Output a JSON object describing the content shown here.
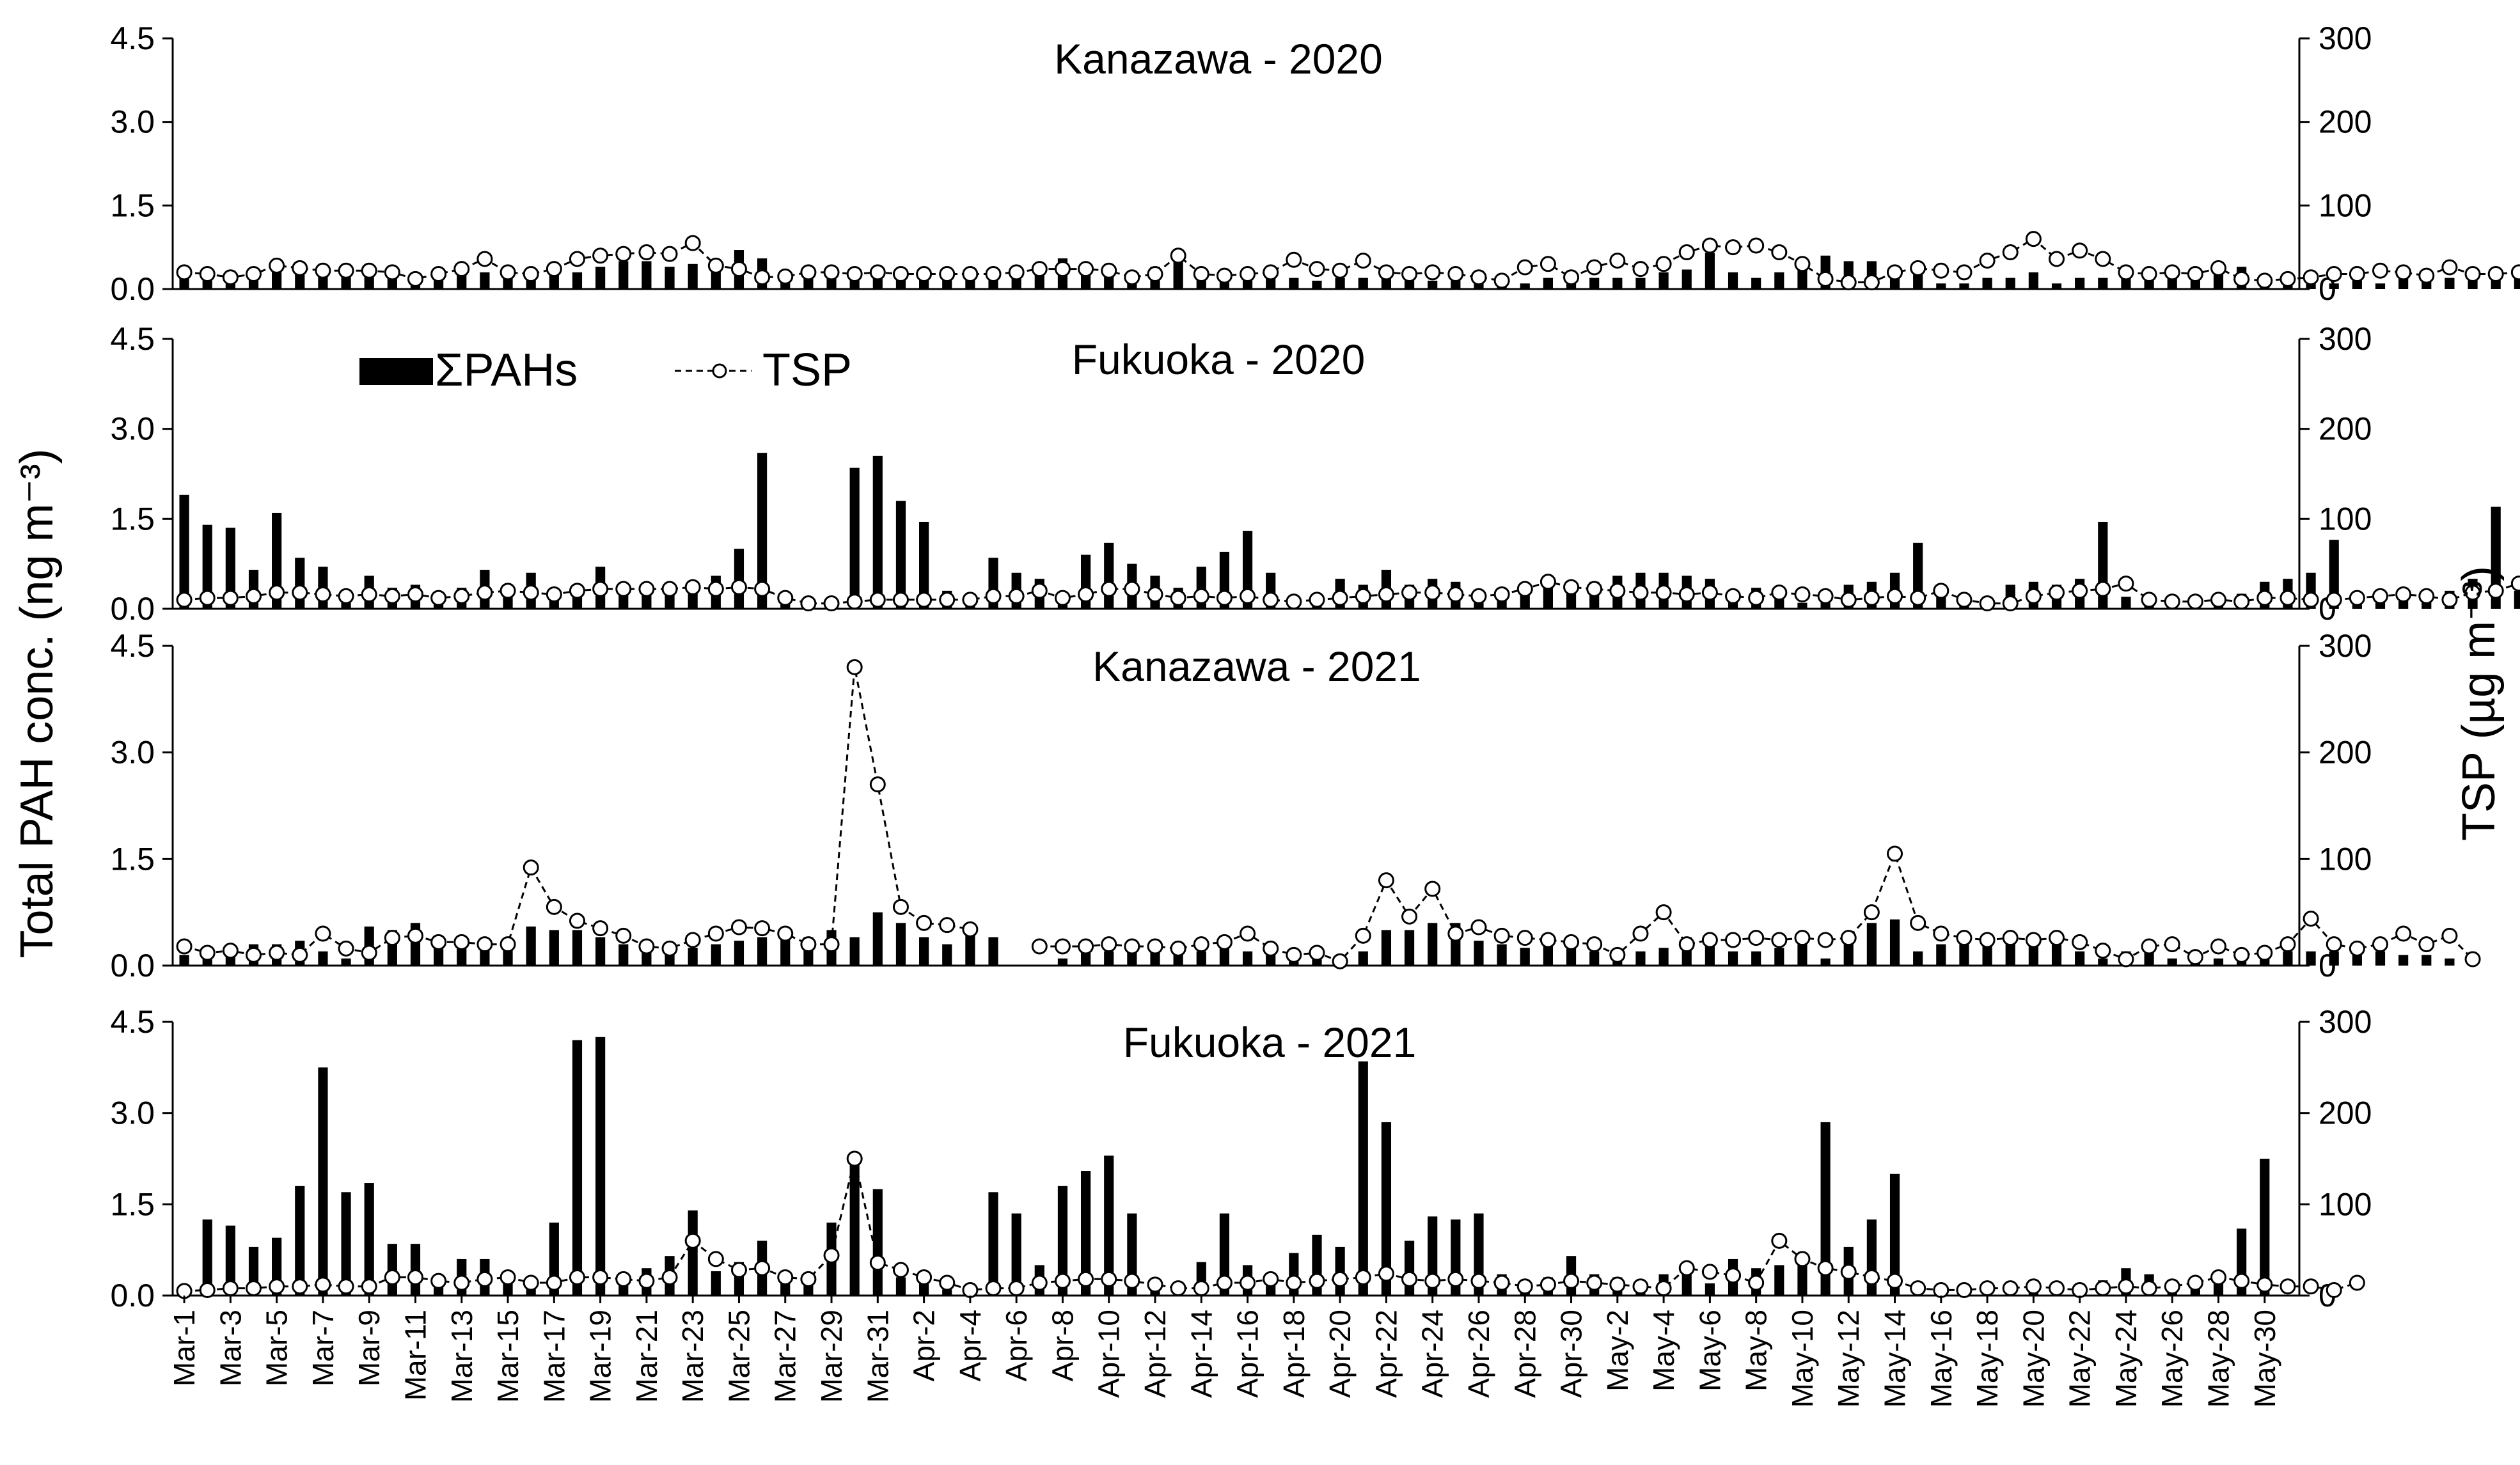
{
  "chart_data": {
    "type": "bar",
    "ylabel": "Total PAH conc. (ng m⁻³)",
    "y2label": "TSP (µg m⁻³)",
    "ylim": [
      0,
      4.5
    ],
    "y2lim": [
      0,
      300
    ],
    "yticks": [
      "0.0",
      "1.5",
      "3.0",
      "4.5"
    ],
    "y2ticks": [
      "0",
      "100",
      "200",
      "300"
    ],
    "legend": [
      {
        "name": "ΣPAHs",
        "style": "bar",
        "color": "#000000"
      },
      {
        "name": "TSP",
        "style": "dashed-line-open-circle",
        "color": "#000000"
      }
    ],
    "legend_placement": "top-left of second panel",
    "x_tick_labels": [
      "Mar-1",
      "Mar-3",
      "Mar-5",
      "Mar-7",
      "Mar-9",
      "Mar-11",
      "Mar-13",
      "Mar-15",
      "Mar-17",
      "Mar-19",
      "Mar-21",
      "Mar-23",
      "Mar-25",
      "Mar-27",
      "Mar-29",
      "Mar-31",
      "Apr-2",
      "Apr-4",
      "Apr-6",
      "Apr-8",
      "Apr-10",
      "Apr-12",
      "Apr-14",
      "Apr-16",
      "Apr-18",
      "Apr-20",
      "Apr-22",
      "Apr-24",
      "Apr-26",
      "Apr-28",
      "Apr-30",
      "May-2",
      "May-4",
      "May-6",
      "May-8",
      "May-10",
      "May-12",
      "May-14",
      "May-16",
      "May-18",
      "May-20",
      "May-22",
      "May-24",
      "May-26",
      "May-28",
      "May-30"
    ],
    "panels": [
      {
        "title": "Kanazawa - 2020",
        "pah": [
          0.2,
          0.2,
          0.2,
          0.3,
          0.5,
          0.3,
          0.4,
          0.3,
          0.3,
          0.2,
          0.1,
          0.2,
          0.25,
          0.3,
          0.3,
          0.2,
          0.3,
          0.3,
          0.4,
          0.5,
          0.5,
          0.4,
          0.45,
          0.4,
          0.7,
          0.55,
          0.2,
          0.2,
          0.2,
          0.3,
          0.2,
          0.2,
          0.2,
          0.2,
          0.3,
          0.2,
          0.2,
          0.4,
          0.55,
          0.4,
          0.3,
          0.2,
          0.4,
          0.6,
          0.2,
          0.2,
          0.2,
          0.3,
          0.2,
          0.15,
          0.2,
          0.2,
          0.2,
          0.2,
          0.15,
          0.2,
          0.2,
          0.2,
          0.1,
          0.2,
          0.2,
          0.2,
          0.2,
          0.2,
          0.3,
          0.35,
          0.65,
          0.3,
          0.2,
          0.3,
          0.5,
          0.6,
          0.5,
          0.5,
          0.4,
          0.3,
          0.1,
          0.1,
          0.2,
          0.2,
          0.3,
          0.1,
          0.2,
          0.2,
          0.2,
          0.3,
          0.3,
          0.2,
          0.3,
          0.4,
          0.2,
          0.15,
          0.2,
          0.1,
          0.2,
          0.1,
          0.2,
          0.3,
          0.2,
          0.2,
          0.2,
          0.2,
          0.3,
          0.1,
          0.2,
          0.2,
          0.2,
          0.25,
          0.25,
          0.2,
          0.25,
          0.2
        ],
        "tsp": [
          20,
          18,
          14,
          18,
          28,
          25,
          22,
          22,
          22,
          20,
          12,
          18,
          24,
          36,
          20,
          18,
          24,
          36,
          40,
          42,
          44,
          42,
          55,
          28,
          24,
          14,
          15,
          20,
          20,
          18,
          20,
          18,
          18,
          18,
          18,
          18,
          20,
          24,
          24,
          24,
          22,
          14,
          18,
          40,
          18,
          16,
          18,
          20,
          35,
          24,
          22,
          34,
          20,
          18,
          20,
          18,
          14,
          10,
          26,
          30,
          14,
          26,
          34,
          24,
          30,
          44,
          52,
          50,
          52,
          44,
          30,
          12,
          8,
          8,
          20,
          25,
          22,
          20,
          34,
          44,
          60,
          36,
          46,
          36,
          20,
          18,
          20,
          18,
          25,
          12,
          10,
          12,
          14,
          18,
          18,
          22,
          20,
          16,
          26,
          18,
          18,
          20,
          20,
          20,
          18,
          20,
          18,
          20,
          18,
          18,
          18,
          16
        ]
      },
      {
        "title": "Fukuoka - 2020",
        "pah": [
          1.9,
          1.4,
          1.35,
          0.65,
          1.6,
          0.85,
          0.7,
          0.2,
          0.55,
          0.35,
          0.4,
          0.1,
          0.35,
          0.65,
          0.3,
          0.6,
          0.3,
          0.4,
          0.7,
          0.35,
          0.3,
          0.25,
          0.4,
          0.55,
          1.0,
          2.6,
          0.2,
          0.2,
          0.1,
          2.35,
          2.55,
          1.8,
          1.45,
          0.3,
          0.2,
          0.85,
          0.6,
          0.5,
          0.2,
          0.9,
          1.1,
          0.75,
          0.55,
          0.35,
          0.7,
          0.95,
          1.3,
          0.6,
          0.2,
          0.15,
          0.5,
          0.4,
          0.65,
          0.4,
          0.5,
          0.45,
          0.2,
          0.35,
          0.4,
          0.35,
          0.4,
          0.45,
          0.55,
          0.6,
          0.6,
          0.55,
          0.5,
          0.3,
          0.35,
          0.2,
          0.1,
          0.2,
          0.4,
          0.45,
          0.6,
          1.1,
          0.2,
          0.15,
          0.2,
          0.4,
          0.45,
          0.4,
          0.5,
          1.45,
          0.2,
          0.2,
          0.2,
          0.15,
          0.2,
          0.25,
          0.45,
          0.5,
          0.6,
          1.15,
          0.2,
          0.2,
          0.15,
          0.25,
          0.3,
          0.5,
          1.7,
          0.3
        ],
        "tsp": [
          10,
          12,
          12,
          14,
          18,
          18,
          16,
          14,
          16,
          14,
          16,
          12,
          14,
          18,
          20,
          18,
          16,
          20,
          22,
          22,
          22,
          22,
          24,
          22,
          24,
          22,
          12,
          6,
          6,
          8,
          10,
          10,
          10,
          10,
          10,
          14,
          14,
          20,
          12,
          16,
          22,
          22,
          16,
          12,
          14,
          12,
          14,
          10,
          8,
          10,
          12,
          14,
          16,
          18,
          18,
          16,
          14,
          16,
          22,
          30,
          24,
          22,
          20,
          18,
          18,
          16,
          18,
          14,
          12,
          18,
          16,
          14,
          10,
          12,
          14,
          12,
          20,
          10,
          6,
          6,
          14,
          18,
          20,
          22,
          28,
          10,
          8,
          8,
          10,
          8,
          12,
          12,
          10,
          10,
          12,
          14,
          16,
          14,
          10,
          18,
          20,
          28
        ]
      },
      {
        "title": "Kanazawa - 2021",
        "pah": [
          0.15,
          0.1,
          0.2,
          0.3,
          0.3,
          0.35,
          0.2,
          0.1,
          0.55,
          0.5,
          0.6,
          0.3,
          0.3,
          0.3,
          0.35,
          0.55,
          0.5,
          0.5,
          0.4,
          0.3,
          0.2,
          0.2,
          0.25,
          0.3,
          0.35,
          0.4,
          0.45,
          0.4,
          0.5,
          0.4,
          0.75,
          0.6,
          0.4,
          0.3,
          0.5,
          0.4,
          null,
          null,
          0.1,
          0.2,
          0.2,
          0.2,
          0.2,
          0.2,
          0.2,
          0.25,
          0.2,
          0.15,
          0.1,
          0.2,
          0.1,
          0.2,
          0.5,
          0.5,
          0.6,
          0.6,
          0.35,
          0.3,
          0.25,
          0.3,
          0.25,
          0.2,
          0.2,
          0.2,
          0.25,
          0.4,
          0.3,
          0.2,
          0.2,
          0.25,
          0.3,
          0.1,
          0.4,
          0.6,
          0.65,
          0.2,
          0.3,
          0.3,
          0.3,
          0.35,
          0.3,
          0.3,
          0.2,
          0.1,
          0.2,
          0.2,
          0.1,
          0.2,
          0.1,
          0.2,
          0.1,
          0.2,
          0.2,
          0.2,
          0.2,
          0.2,
          0.15,
          0.15,
          0.1
        ],
        "tsp": [
          18,
          12,
          14,
          10,
          12,
          10,
          30,
          16,
          12,
          26,
          28,
          22,
          22,
          20,
          20,
          92,
          55,
          42,
          35,
          28,
          18,
          16,
          24,
          30,
          36,
          35,
          30,
          20,
          20,
          280,
          170,
          55,
          40,
          38,
          34,
          null,
          null,
          18,
          18,
          18,
          20,
          18,
          18,
          16,
          20,
          22,
          30,
          16,
          10,
          12,
          4,
          28,
          80,
          46,
          72,
          30,
          36,
          28,
          26,
          24,
          22,
          20,
          10,
          30,
          50,
          20,
          24,
          24,
          26,
          24,
          26,
          24,
          26,
          50,
          105,
          40,
          30,
          26,
          24,
          26,
          24,
          26,
          22,
          14,
          6,
          18,
          20,
          8,
          18,
          10,
          12,
          20,
          44,
          20,
          16,
          20,
          30,
          20,
          28,
          6
        ]
      },
      {
        "title": "Fukuoka - 2021",
        "pah": [
          0.1,
          1.25,
          1.15,
          0.8,
          0.95,
          1.8,
          3.75,
          1.7,
          1.85,
          0.85,
          0.85,
          0.25,
          0.6,
          0.6,
          0.3,
          0.2,
          1.2,
          4.2,
          4.25,
          0.3,
          0.45,
          0.65,
          1.4,
          0.4,
          0.55,
          0.9,
          0.25,
          0.3,
          1.2,
          2.25,
          1.75,
          0.3,
          0.2,
          0.1,
          0.1,
          1.7,
          1.35,
          0.5,
          1.8,
          2.05,
          2.3,
          1.35,
          0.25,
          0.15,
          0.55,
          1.35,
          0.5,
          0.35,
          0.7,
          1.0,
          0.8,
          3.85,
          2.85,
          0.9,
          1.3,
          1.25,
          1.35,
          0.35,
          0.2,
          0.3,
          0.65,
          0.35,
          0.3,
          0.25,
          0.35,
          0.4,
          0.2,
          0.6,
          0.45,
          0.5,
          0.6,
          2.85,
          0.8,
          1.25,
          2.0,
          0.15,
          0.1,
          0.1,
          0.15,
          0.1,
          0.1,
          0.15,
          0.2,
          0.25,
          0.45,
          0.35,
          0.2,
          0.15,
          0.2,
          1.1,
          2.25
        ],
        "tsp": [
          5,
          6,
          8,
          8,
          10,
          10,
          12,
          10,
          10,
          20,
          20,
          16,
          14,
          18,
          20,
          14,
          14,
          20,
          20,
          18,
          16,
          20,
          60,
          40,
          28,
          30,
          20,
          18,
          44,
          150,
          36,
          28,
          20,
          14,
          6,
          8,
          8,
          14,
          16,
          18,
          18,
          16,
          12,
          8,
          8,
          14,
          14,
          18,
          14,
          16,
          18,
          20,
          24,
          18,
          16,
          18,
          16,
          14,
          10,
          12,
          16,
          14,
          12,
          10,
          8,
          30,
          26,
          22,
          14,
          60,
          40,
          30,
          26,
          20,
          16,
          8,
          6,
          6,
          8,
          8,
          10,
          8,
          6,
          8,
          10,
          8,
          10,
          14,
          20,
          16,
          12,
          10,
          10,
          6,
          14
        ]
      }
    ]
  }
}
